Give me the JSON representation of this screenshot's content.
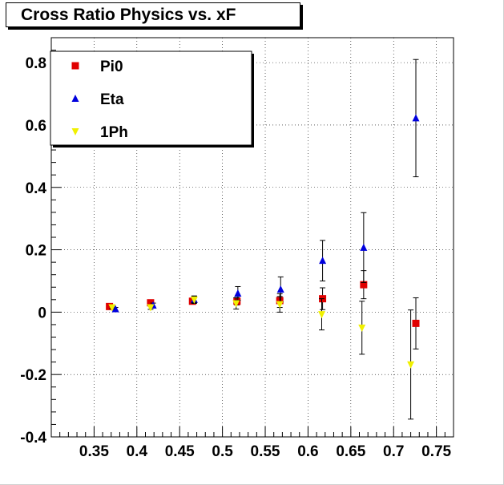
{
  "chart_data": {
    "type": "scatter",
    "title": "Cross Ratio Physics vs. xF",
    "xlabel": "",
    "ylabel": "",
    "xlim": [
      0.3,
      0.77
    ],
    "ylim": [
      -0.4,
      0.88
    ],
    "x_ticks": [
      0.35,
      0.4,
      0.45,
      0.5,
      0.55,
      0.6,
      0.65,
      0.7,
      0.75
    ],
    "x_tick_labels": [
      "0.35",
      "0.4",
      "0.45",
      "0.5",
      "0.55",
      "0.6",
      "0.65",
      "0.7",
      "0.75"
    ],
    "y_ticks": [
      -0.4,
      -0.2,
      0,
      0.2,
      0.4,
      0.6,
      0.8
    ],
    "y_tick_labels": [
      "-0.4",
      "-0.2",
      "0",
      "0.2",
      "0.4",
      "0.6",
      "0.8"
    ],
    "grid": true,
    "legend_position": "top-left",
    "series": [
      {
        "name": "Pi0",
        "marker": "square",
        "color": "#e00000",
        "points": [
          {
            "x": 0.368,
            "y": 0.018,
            "err": 0.004
          },
          {
            "x": 0.416,
            "y": 0.03,
            "err": 0.006
          },
          {
            "x": 0.465,
            "y": 0.035,
            "err": 0.008
          },
          {
            "x": 0.517,
            "y": 0.035,
            "err": 0.012
          },
          {
            "x": 0.567,
            "y": 0.037,
            "err": 0.022
          },
          {
            "x": 0.617,
            "y": 0.043,
            "err": 0.035
          },
          {
            "x": 0.665,
            "y": 0.088,
            "err": 0.045
          },
          {
            "x": 0.726,
            "y": -0.036,
            "err": 0.082
          }
        ]
      },
      {
        "name": "Eta",
        "marker": "triangle-up",
        "color": "#0000dd",
        "points": [
          {
            "x": 0.375,
            "y": 0.01,
            "err": 0.005
          },
          {
            "x": 0.419,
            "y": 0.022,
            "err": 0.007
          },
          {
            "x": 0.467,
            "y": 0.04,
            "err": 0.012
          },
          {
            "x": 0.518,
            "y": 0.06,
            "err": 0.022
          },
          {
            "x": 0.568,
            "y": 0.073,
            "err": 0.04
          },
          {
            "x": 0.617,
            "y": 0.165,
            "err": 0.065
          },
          {
            "x": 0.665,
            "y": 0.207,
            "err": 0.112
          },
          {
            "x": 0.726,
            "y": 0.622,
            "err": 0.188
          }
        ]
      },
      {
        "name": "1Ph",
        "marker": "triangle-down",
        "color": "#f0f000",
        "points": [
          {
            "x": 0.371,
            "y": 0.015,
            "err": 0.004
          },
          {
            "x": 0.416,
            "y": 0.015,
            "err": 0.006
          },
          {
            "x": 0.467,
            "y": 0.04,
            "err": 0.01
          },
          {
            "x": 0.516,
            "y": 0.028,
            "err": 0.018
          },
          {
            "x": 0.567,
            "y": 0.025,
            "err": 0.025
          },
          {
            "x": 0.616,
            "y": -0.007,
            "err": 0.05
          },
          {
            "x": 0.663,
            "y": -0.05,
            "err": 0.085
          },
          {
            "x": 0.72,
            "y": -0.168,
            "err": 0.175
          }
        ]
      }
    ]
  }
}
